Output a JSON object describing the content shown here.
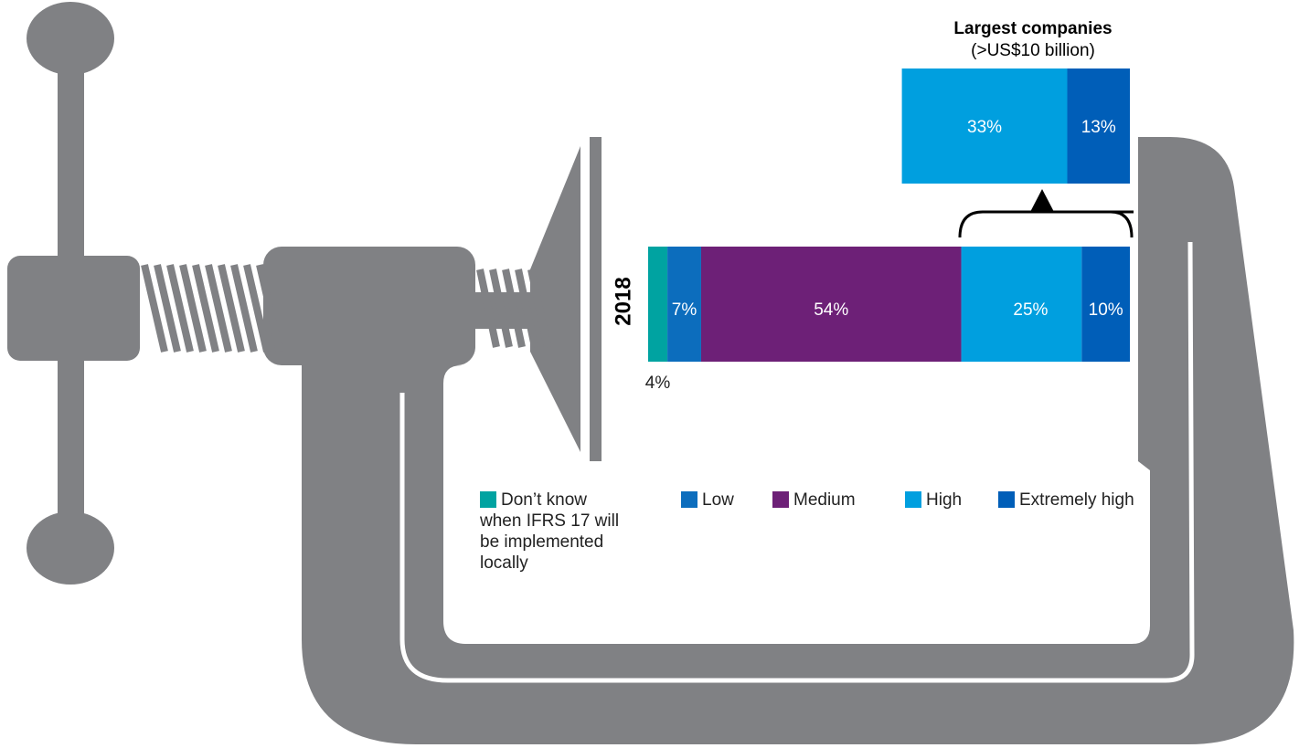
{
  "chart_data": [
    {
      "type": "stacked-bar",
      "orientation": "horizontal",
      "categories": [
        "2018"
      ],
      "series": [
        {
          "name": "Don’t know when IFRS 17 will be implemented locally",
          "color": "#00a3a1",
          "values": [
            4
          ],
          "value_labels": [
            "4%"
          ]
        },
        {
          "name": "Low",
          "color": "#0c6dbd",
          "values": [
            7
          ],
          "value_labels": [
            "7%"
          ]
        },
        {
          "name": "Medium",
          "color": "#6d2077",
          "values": [
            54
          ],
          "value_labels": [
            "54%"
          ]
        },
        {
          "name": "High",
          "color": "#009fdf",
          "values": [
            25
          ],
          "value_labels": [
            "25%"
          ]
        },
        {
          "name": "Extremely high",
          "color": "#005eb8",
          "values": [
            10
          ],
          "value_labels": [
            "10%"
          ]
        }
      ]
    },
    {
      "type": "stacked-bar",
      "orientation": "horizontal",
      "title": "Largest companies",
      "subtitle": "(>US$10 billion)",
      "series": [
        {
          "color": "#009fdf",
          "values": [
            33
          ],
          "value_labels": [
            "33%"
          ]
        },
        {
          "color": "#005eb8",
          "values": [
            13
          ],
          "value_labels": [
            "13%"
          ]
        }
      ]
    }
  ]
}
